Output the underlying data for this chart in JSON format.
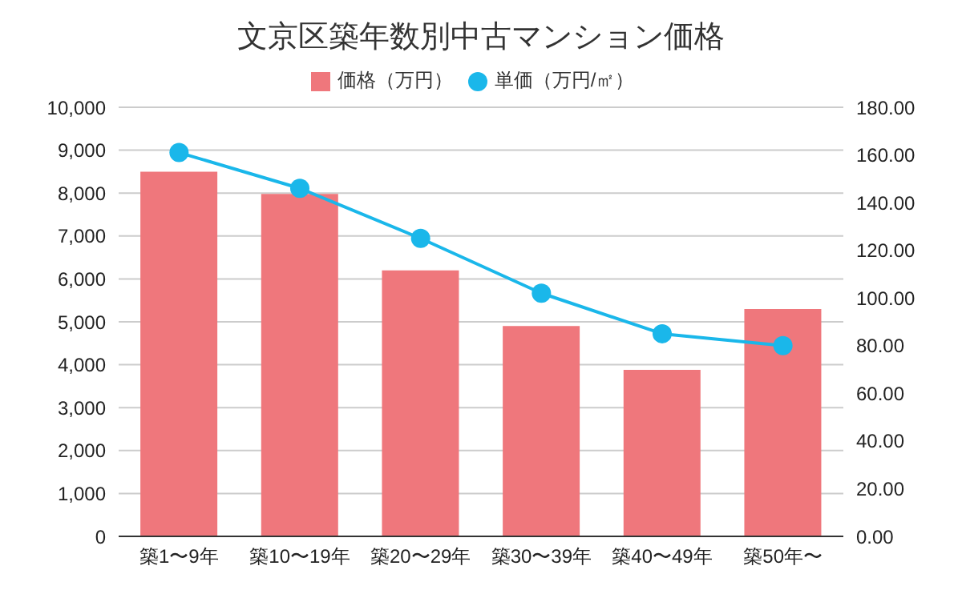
{
  "chart_data": {
    "type": "bar",
    "title": "文京区築年数別中古マンション価格",
    "categories": [
      "築1〜9年",
      "築10〜19年",
      "築20〜29年",
      "築30〜39年",
      "築40〜49年",
      "築50年〜"
    ],
    "series": [
      {
        "name": "価格（万円）",
        "color": "#ef777c",
        "values": [
          8500,
          7980,
          6200,
          4900,
          3880,
          5300
        ]
      },
      {
        "name": "単価（万円/㎡）",
        "type": "line",
        "axis": "y2",
        "color": "#1ab7ea",
        "marker": "circle",
        "values": [
          161,
          146,
          125,
          102,
          85,
          80
        ]
      }
    ],
    "ylim": [
      0,
      10000
    ],
    "yticks": [
      0,
      {
        "value": 1000,
        "label": "1,000"
      },
      {
        "value": 2000,
        "label": "2,000"
      },
      {
        "value": 3000,
        "label": "3,000"
      },
      {
        "value": 4000,
        "label": "4,000"
      },
      {
        "value": 5000,
        "label": "5,000"
      },
      {
        "value": 6000,
        "label": "6,000"
      },
      {
        "value": 7000,
        "label": "7,000"
      },
      {
        "value": 8000,
        "label": "8,000"
      },
      {
        "value": 9000,
        "label": "9,000"
      },
      {
        "value": 10000,
        "label": "10,000"
      }
    ],
    "y2lim": [
      0,
      180
    ],
    "y2ticks": [
      {
        "value": 0,
        "label": "0.00"
      },
      {
        "value": 20,
        "label": "20.00"
      },
      {
        "value": 40,
        "label": "40.00"
      },
      {
        "value": 60,
        "label": "60.00"
      },
      {
        "value": 80,
        "label": "80.00"
      },
      {
        "value": 100,
        "label": "100.00"
      },
      {
        "value": 120,
        "label": "120.00"
      },
      {
        "value": 140,
        "label": "140.00"
      },
      {
        "value": 160,
        "label": "160.00"
      },
      {
        "value": 180,
        "label": "180.00"
      }
    ],
    "grid": "y",
    "legend": "top"
  }
}
